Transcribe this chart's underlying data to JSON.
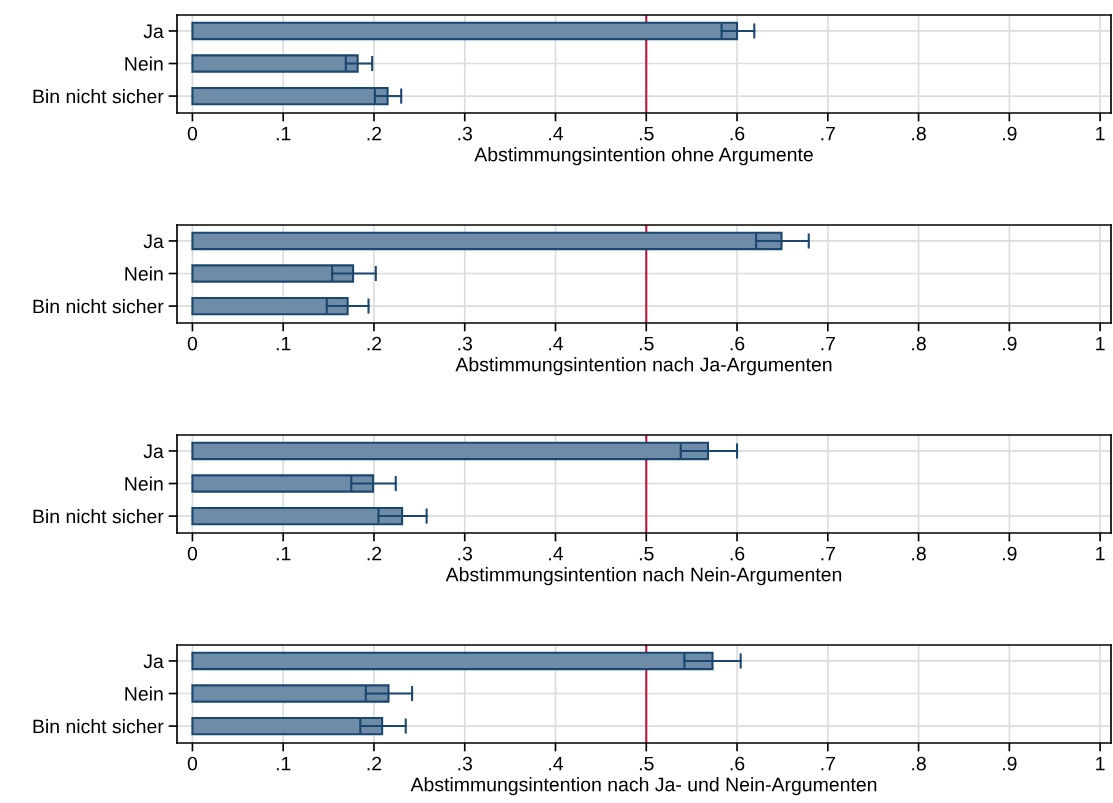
{
  "chart_data": [
    {
      "type": "bar",
      "orientation": "horizontal",
      "xlabel": "Abstimmungsintention ohne Argumente",
      "categories": [
        "Ja",
        "Nein",
        "Bin nicht sicher"
      ],
      "values": [
        0.6,
        0.182,
        0.215
      ],
      "errors": [
        [
          0.583,
          0.619
        ],
        [
          0.169,
          0.198
        ],
        [
          0.201,
          0.23
        ]
      ],
      "color": "#6e8ca8",
      "xlim": [
        -0.017,
        1.012
      ],
      "xticks": [
        0,
        {
          "value": 0.1,
          "label": ".1"
        },
        {
          "value": 0.2,
          "label": ".2"
        },
        {
          "value": 0.3,
          "label": ".3"
        },
        {
          "value": 0.4,
          "label": ".4"
        },
        {
          "value": 0.5,
          "label": ".5"
        },
        {
          "value": 0.6,
          "label": ".6"
        },
        {
          "value": 0.7,
          "label": ".7"
        },
        {
          "value": 0.8,
          "label": ".8"
        },
        {
          "value": 0.9,
          "label": ".9"
        },
        1
      ],
      "ref_lines": [
        {
          "axis": "x",
          "value": 0.5,
          "color": "#c8143c"
        }
      ],
      "grid": true
    },
    {
      "type": "bar",
      "orientation": "horizontal",
      "xlabel": "Abstimmungsintention nach Ja-Argumenten",
      "categories": [
        "Ja",
        "Nein",
        "Bin nicht sicher"
      ],
      "values": [
        0.649,
        0.177,
        0.171
      ],
      "errors": [
        [
          0.621,
          0.679
        ],
        [
          0.154,
          0.202
        ],
        [
          0.148,
          0.194
        ]
      ],
      "color": "#6e8ca8",
      "xlim": [
        -0.017,
        1.012
      ],
      "xticks": [
        0,
        {
          "value": 0.1,
          "label": ".1"
        },
        {
          "value": 0.2,
          "label": ".2"
        },
        {
          "value": 0.3,
          "label": ".3"
        },
        {
          "value": 0.4,
          "label": ".4"
        },
        {
          "value": 0.5,
          "label": ".5"
        },
        {
          "value": 0.6,
          "label": ".6"
        },
        {
          "value": 0.7,
          "label": ".7"
        },
        {
          "value": 0.8,
          "label": ".8"
        },
        {
          "value": 0.9,
          "label": ".9"
        },
        1
      ],
      "ref_lines": [
        {
          "axis": "x",
          "value": 0.5,
          "color": "#c8143c"
        }
      ],
      "grid": true
    },
    {
      "type": "bar",
      "orientation": "horizontal",
      "xlabel": "Abstimmungsintention nach Nein-Argumenten",
      "categories": [
        "Ja",
        "Nein",
        "Bin nicht sicher"
      ],
      "values": [
        0.568,
        0.199,
        0.231
      ],
      "errors": [
        [
          0.538,
          0.6
        ],
        [
          0.175,
          0.224
        ],
        [
          0.205,
          0.258
        ]
      ],
      "color": "#6e8ca8",
      "xlim": [
        -0.017,
        1.012
      ],
      "xticks": [
        0,
        {
          "value": 0.1,
          "label": ".1"
        },
        {
          "value": 0.2,
          "label": ".2"
        },
        {
          "value": 0.3,
          "label": ".3"
        },
        {
          "value": 0.4,
          "label": ".4"
        },
        {
          "value": 0.5,
          "label": ".5"
        },
        {
          "value": 0.6,
          "label": ".6"
        },
        {
          "value": 0.7,
          "label": ".7"
        },
        {
          "value": 0.8,
          "label": ".8"
        },
        {
          "value": 0.9,
          "label": ".9"
        },
        1
      ],
      "ref_lines": [
        {
          "axis": "x",
          "value": 0.5,
          "color": "#c8143c"
        }
      ],
      "grid": true
    },
    {
      "type": "bar",
      "orientation": "horizontal",
      "xlabel": "Abstimmungsintention nach Ja- und Nein-Argumenten",
      "categories": [
        "Ja",
        "Nein",
        "Bin nicht sicher"
      ],
      "values": [
        0.573,
        0.216,
        0.209
      ],
      "errors": [
        [
          0.542,
          0.604
        ],
        [
          0.191,
          0.242
        ],
        [
          0.185,
          0.235
        ]
      ],
      "color": "#6e8ca8",
      "xlim": [
        -0.017,
        1.012
      ],
      "xticks": [
        0,
        {
          "value": 0.1,
          "label": ".1"
        },
        {
          "value": 0.2,
          "label": ".2"
        },
        {
          "value": 0.3,
          "label": ".3"
        },
        {
          "value": 0.4,
          "label": ".4"
        },
        {
          "value": 0.5,
          "label": ".5"
        },
        {
          "value": 0.6,
          "label": ".6"
        },
        {
          "value": 0.7,
          "label": ".7"
        },
        {
          "value": 0.8,
          "label": ".8"
        },
        {
          "value": 0.9,
          "label": ".9"
        },
        1
      ],
      "ref_lines": [
        {
          "axis": "x",
          "value": 0.5,
          "color": "#c8143c"
        }
      ],
      "grid": true
    }
  ]
}
